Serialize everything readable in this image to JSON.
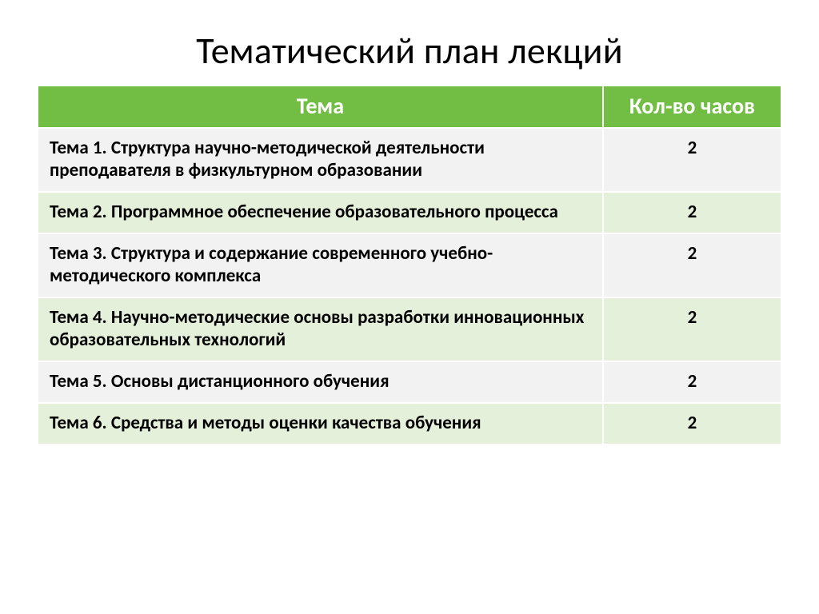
{
  "slide": {
    "title": "Тематический план лекций",
    "title_fontsize": 46,
    "title_color": "#000000",
    "background_color": "#ffffff"
  },
  "table": {
    "type": "table",
    "header_bg": "#72be44",
    "header_fg": "#ffffff",
    "header_fontsize": 28,
    "body_fontsize": 23,
    "row_colors": {
      "light": "#f2f2f2",
      "green": "#e4f0d9"
    },
    "border_color": "#ffffff",
    "column_widths_pct": [
      76,
      24
    ],
    "columns": [
      {
        "key": "topic",
        "label": "Тема",
        "align": "left"
      },
      {
        "key": "hours",
        "label": "Кол-во часов",
        "align": "center"
      }
    ],
    "rows": [
      {
        "topic": "Тема 1. Структура научно-методической деятельности преподавателя в физкультурном образовании",
        "hours": "2",
        "shade": "light"
      },
      {
        "topic": "Тема 2. Программное обеспечение образовательного процесса",
        "hours": "2",
        "shade": "green"
      },
      {
        "topic": "Тема 3. Структура и содержание современного учебно-методического комплекса",
        "hours": "2",
        "shade": "light"
      },
      {
        "topic": "Тема 4. Научно-методические основы разработки инновационных  образовательных технологий",
        "hours": "2",
        "shade": "green"
      },
      {
        "topic": "Тема 5. Основы дистанционного обучения",
        "hours": "2",
        "shade": "light"
      },
      {
        "topic": "Тема 6. Средства и методы оценки качества обучения",
        "hours": "2",
        "shade": "green"
      }
    ]
  }
}
